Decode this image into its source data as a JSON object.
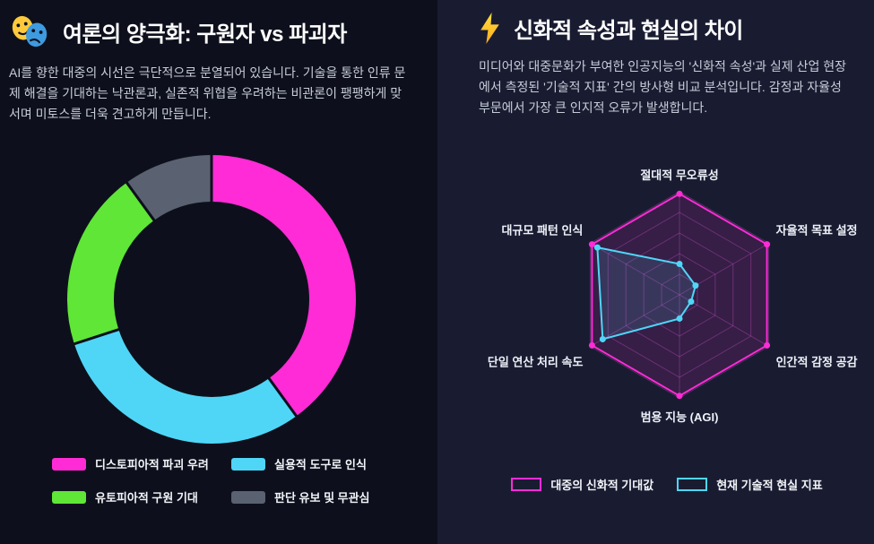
{
  "panels": {
    "left": {
      "icon": "theater-masks",
      "title": "여론의 양극화: 구원자 vs 파괴자",
      "description": "AI를 향한 대중의 시선은 극단적으로 분열되어 있습니다. 기술을 통한 인류 문제 해결을 기대하는 낙관론과, 실존적 위협을 우려하는 비관론이 팽팽하게 맞서며 미토스를 더욱 견고하게 만듭니다."
    },
    "right": {
      "icon": "lightning-bolt",
      "title": "신화적 속성과 현실의 차이",
      "description": "미디어와 대중문화가 부여한 인공지능의 '신화적 속성'과 실제 산업 현장에서 측정된 '기술적 지표' 간의 방사형 비교 분석입니다. 감정과 자율성 부문에서 가장 큰 인지적 오류가 발생합니다."
    }
  },
  "chart_data": [
    {
      "type": "pie",
      "variant": "donut",
      "title": "여론의 양극화: 구원자 vs 파괴자",
      "labels": [
        "디스토피아적 파괴 우려",
        "실용적 도구로 인식",
        "유토피아적 구원 기대",
        "판단 유보 및 무관심"
      ],
      "values": [
        40,
        30,
        20,
        10
      ],
      "colors": [
        "#ff2bd6",
        "#4fd6f7",
        "#5fe636",
        "#5a6170"
      ],
      "legend_position": "bottom"
    },
    {
      "type": "radar",
      "title": "신화적 속성과 현실의 차이",
      "axes": [
        "절대적 무오류성",
        "자율적 목표 설정",
        "인간적 감정 공감",
        "범용 지능 (AGI)",
        "단일 연산 처리 속도",
        "대규모 패턴 인식"
      ],
      "range": [
        0,
        100
      ],
      "grid_levels": 5,
      "series": [
        {
          "name": "대중의 신화적 기대값",
          "color": "#ff2bd6",
          "values": [
            98,
            98,
            98,
            98,
            98,
            98
          ]
        },
        {
          "name": "현재 기술적 현실 지표",
          "color": "#4fd6f7",
          "values": [
            30,
            18,
            13,
            23,
            86,
            92
          ]
        }
      ],
      "legend_position": "bottom"
    }
  ]
}
